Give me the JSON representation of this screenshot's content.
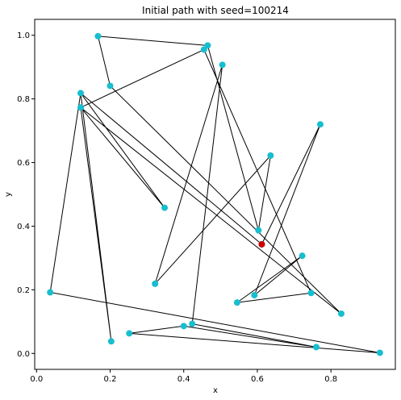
{
  "chart_data": {
    "type": "scatter",
    "title": "Initial path with seed=100214",
    "xlabel": "x",
    "ylabel": "y",
    "xlim": [
      -0.005,
      0.975
    ],
    "ylim": [
      -0.05,
      1.05
    ],
    "xticks": [
      0.0,
      0.2,
      0.4,
      0.6,
      0.8
    ],
    "xtick_labels": [
      "0.0",
      "0.2",
      "0.4",
      "0.6",
      "0.8"
    ],
    "yticks": [
      0.0,
      0.2,
      0.4,
      0.6,
      0.8,
      1.0
    ],
    "ytick_labels": [
      "0.0",
      "0.2",
      "0.4",
      "0.6",
      "0.8",
      "1.0"
    ],
    "grid": false,
    "point_color": "#17becf",
    "start_color": "#cc0000",
    "line_color": "#000000",
    "path": [
      [
        0.612,
        0.343
      ],
      [
        0.771,
        0.72
      ],
      [
        0.592,
        0.183
      ],
      [
        0.722,
        0.307
      ],
      [
        0.545,
        0.16
      ],
      [
        0.746,
        0.19
      ],
      [
        0.455,
        0.955
      ],
      [
        0.12,
        0.773
      ],
      [
        0.203,
        0.038
      ],
      [
        0.12,
        0.818
      ],
      [
        0.037,
        0.192
      ],
      [
        0.933,
        0.002
      ],
      [
        0.252,
        0.063
      ],
      [
        0.4,
        0.086
      ],
      [
        0.76,
        0.02
      ],
      [
        0.423,
        0.093
      ],
      [
        0.505,
        0.907
      ],
      [
        0.322,
        0.219
      ],
      [
        0.636,
        0.622
      ],
      [
        0.603,
        0.387
      ],
      [
        0.465,
        0.968
      ],
      [
        0.167,
        0.997
      ],
      [
        0.2,
        0.841
      ],
      [
        0.828,
        0.125
      ],
      [
        0.12,
        0.773
      ],
      [
        0.348,
        0.458
      ],
      [
        0.12,
        0.818
      ],
      [
        0.612,
        0.343
      ]
    ],
    "points": [
      [
        0.612,
        0.343
      ],
      [
        0.771,
        0.72
      ],
      [
        0.592,
        0.183
      ],
      [
        0.722,
        0.307
      ],
      [
        0.545,
        0.16
      ],
      [
        0.746,
        0.19
      ],
      [
        0.455,
        0.955
      ],
      [
        0.465,
        0.968
      ],
      [
        0.12,
        0.773
      ],
      [
        0.12,
        0.818
      ],
      [
        0.203,
        0.038
      ],
      [
        0.037,
        0.192
      ],
      [
        0.933,
        0.002
      ],
      [
        0.252,
        0.063
      ],
      [
        0.4,
        0.086
      ],
      [
        0.423,
        0.093
      ],
      [
        0.76,
        0.02
      ],
      [
        0.505,
        0.907
      ],
      [
        0.322,
        0.219
      ],
      [
        0.636,
        0.622
      ],
      [
        0.603,
        0.387
      ],
      [
        0.167,
        0.997
      ],
      [
        0.2,
        0.841
      ],
      [
        0.828,
        0.125
      ],
      [
        0.348,
        0.458
      ]
    ],
    "start_point": [
      0.612,
      0.343
    ]
  }
}
